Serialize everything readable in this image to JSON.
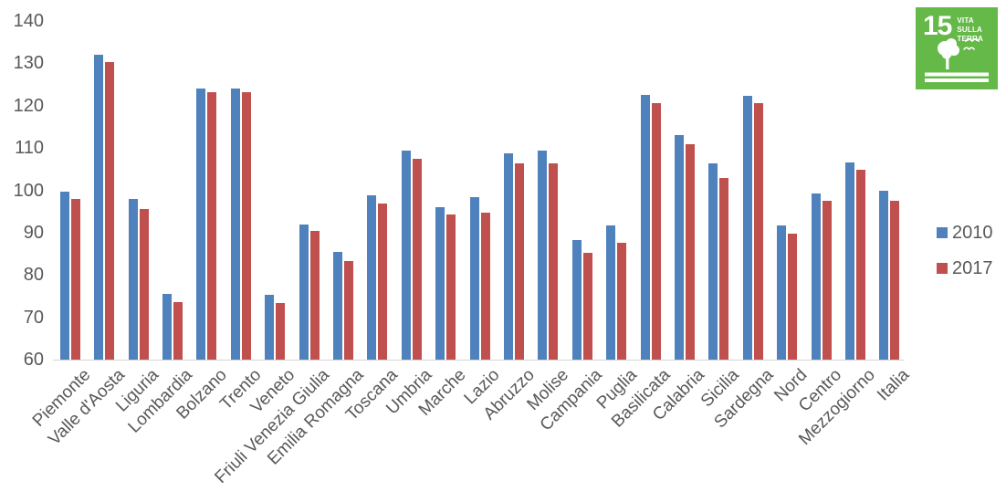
{
  "chart_data": {
    "type": "bar",
    "title": "",
    "xlabel": "",
    "ylabel": "",
    "ylim": [
      60,
      140
    ],
    "yticks": [
      140,
      130,
      120,
      110,
      100,
      90,
      80,
      70,
      60
    ],
    "grid": false,
    "legend_position": "right",
    "categories": [
      "Piemonte",
      "Valle d'Aosta",
      "Liguria",
      "Lombardia",
      "Bolzano",
      "Trento",
      "Veneto",
      "Friuli Venezia Giulia",
      "Emilia Romagna",
      "Toscana",
      "Umbria",
      "Marche",
      "Lazio",
      "Abruzzo",
      "Molise",
      "Campania",
      "Puglia",
      "Basilicata",
      "Calabria",
      "Sicilia",
      "Sardegna",
      "Nord",
      "Centro",
      "Mezzogiorno",
      "Italia"
    ],
    "series": [
      {
        "name": "2010",
        "color": "#4F81BD",
        "values": [
          99.6,
          132.1,
          98.0,
          75.5,
          124.0,
          124.0,
          75.4,
          92.0,
          85.5,
          98.9,
          109.4,
          96.0,
          98.4,
          108.8,
          109.3,
          88.3,
          91.8,
          122.5,
          113.0,
          106.4,
          122.3,
          91.7,
          99.3,
          106.5,
          100.0
        ]
      },
      {
        "name": "2017",
        "color": "#C0504D",
        "values": [
          98.0,
          130.3,
          95.6,
          73.5,
          123.1,
          123.1,
          73.4,
          90.4,
          83.2,
          96.9,
          107.4,
          94.2,
          94.8,
          106.3,
          106.4,
          85.3,
          87.5,
          120.7,
          110.9,
          102.9,
          120.5,
          89.7,
          97.5,
          104.8,
          97.5
        ]
      }
    ]
  },
  "sdg_badge": {
    "number": "15",
    "title_line1": "VITA",
    "title_line2": "SULLA TERRA",
    "color": "#65B948"
  }
}
